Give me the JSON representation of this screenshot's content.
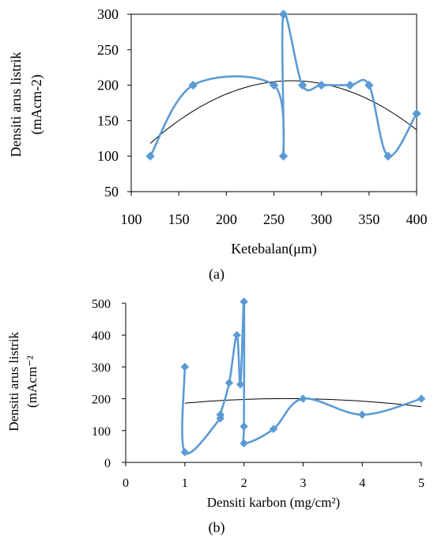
{
  "chart_data": [
    {
      "type": "scatter",
      "panel_label": "(a)",
      "xlabel": "Ketebalan(μm)",
      "ylabel_line1": "Densiti arus listrik",
      "ylabel_line2": "(mAcm-2)",
      "xlim": [
        100,
        400
      ],
      "ylim": [
        50,
        300
      ],
      "xticks": [
        "100",
        "150",
        "200",
        "250",
        "300",
        "350",
        "400"
      ],
      "yticks": [
        "50",
        "100",
        "150",
        "200",
        "250",
        "300"
      ],
      "series_color": "#5b9bd5",
      "trend_color": "#000000",
      "points": [
        {
          "x": 120,
          "y": 100
        },
        {
          "x": 165,
          "y": 200
        },
        {
          "x": 250,
          "y": 200
        },
        {
          "x": 260,
          "y": 100
        },
        {
          "x": 260,
          "y": 300
        },
        {
          "x": 280,
          "y": 200
        },
        {
          "x": 300,
          "y": 200
        },
        {
          "x": 330,
          "y": 200
        },
        {
          "x": 350,
          "y": 200
        },
        {
          "x": 370,
          "y": 100
        },
        {
          "x": 400,
          "y": 160
        }
      ],
      "trendline": {
        "type": "polynomial",
        "degree": 2,
        "x_range": [
          120,
          400
        ],
        "points": [
          [
            120,
            118
          ],
          [
            260,
            206
          ],
          [
            400,
            137
          ]
        ]
      }
    },
    {
      "type": "scatter",
      "panel_label": "(b)",
      "xlabel": "Densiti karbon (mg/cm²)",
      "ylabel_line1": "Densiti arus listrik",
      "ylabel_line2": "(mAcm⁻²",
      "xlim": [
        0,
        5
      ],
      "ylim": [
        0,
        500
      ],
      "xticks": [
        "0",
        "1",
        "2",
        "3",
        "4",
        "5"
      ],
      "yticks": [
        "0",
        "100",
        "200",
        "300",
        "400",
        "500"
      ],
      "series_color": "#5b9bd5",
      "trend_color": "#000000",
      "points": [
        {
          "x": 1.0,
          "y": 300
        },
        {
          "x": 1.0,
          "y": 32
        },
        {
          "x": 1.6,
          "y": 138
        },
        {
          "x": 1.6,
          "y": 150
        },
        {
          "x": 1.75,
          "y": 250
        },
        {
          "x": 1.88,
          "y": 400
        },
        {
          "x": 1.94,
          "y": 245
        },
        {
          "x": 2.0,
          "y": 505
        },
        {
          "x": 2.0,
          "y": 113
        },
        {
          "x": 2.0,
          "y": 60
        },
        {
          "x": 2.5,
          "y": 105
        },
        {
          "x": 3.0,
          "y": 200
        },
        {
          "x": 4.0,
          "y": 150
        },
        {
          "x": 5.0,
          "y": 200
        }
      ],
      "trendline": {
        "type": "polynomial",
        "degree": 2,
        "x_range": [
          1,
          5
        ],
        "points": [
          [
            1,
            186
          ],
          [
            3,
            200
          ],
          [
            5,
            175
          ]
        ]
      }
    }
  ]
}
